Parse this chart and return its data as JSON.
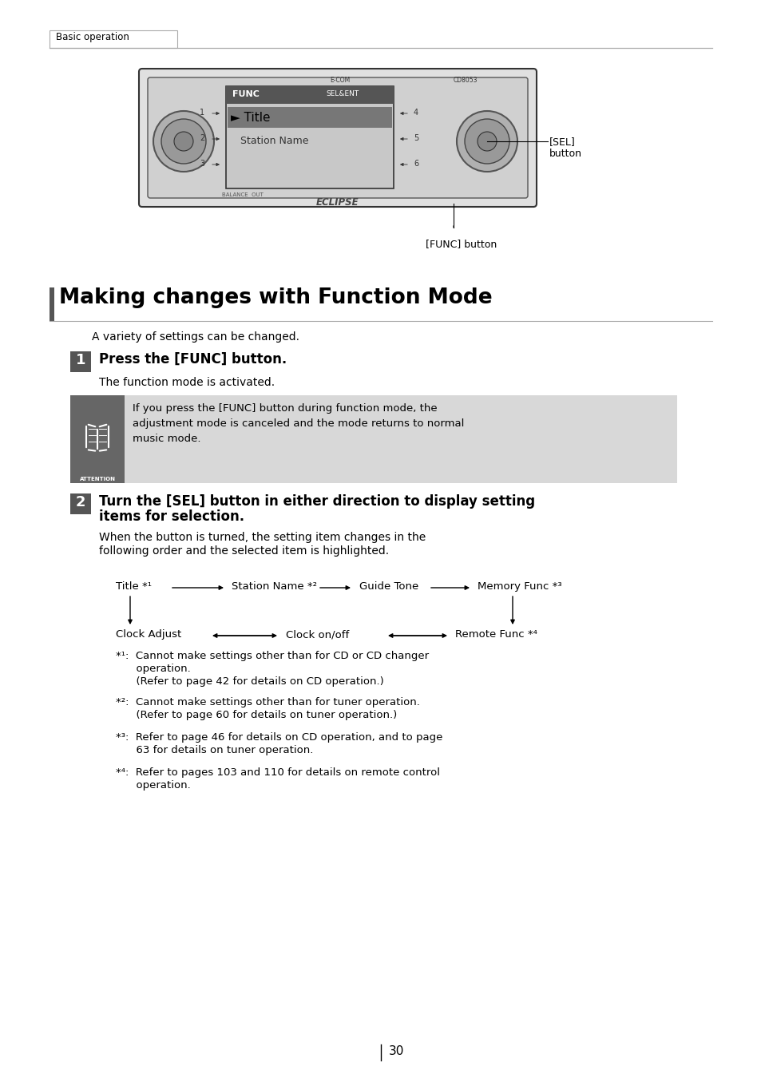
{
  "page_bg": "#ffffff",
  "tab_text": "Basic operation",
  "section_title": "Making changes with Function Mode",
  "section_title_bar_color": "#555555",
  "intro_text": "A variety of settings can be changed.",
  "step1_heading": "Press the [FUNC] button.",
  "step1_body": "The function mode is activated.",
  "attention_bg": "#d8d8d8",
  "attention_icon_bg": "#666666",
  "attention_text": "If you press the [FUNC] button during function mode, the\nadjustment mode is canceled and the mode returns to normal\nmusic mode.",
  "step2_heading_line1": "Turn the [SEL] button in either direction to display setting",
  "step2_heading_line2": "items for selection.",
  "step2_body_line1": "When the button is turned, the setting item changes in the",
  "step2_body_line2": "following order and the selected item is highlighted.",
  "note1_line1": "*¹:  Cannot make settings other than for CD or CD changer",
  "note1_line2": "      operation.",
  "note1_line3": "      (Refer to page 42 for details on CD operation.)",
  "note2_line1": "*²:  Cannot make settings other than for tuner operation.",
  "note2_line2": "      (Refer to page 60 for details on tuner operation.)",
  "note3_line1": "*³:  Refer to page 46 for details on CD operation, and to page",
  "note3_line2": "      63 for details on tuner operation.",
  "note4_line1": "*⁴:  Refer to pages 103 and 110 for details on remote control",
  "note4_line2": "      operation.",
  "page_number": "30",
  "sel_label1": "[SEL]",
  "sel_label2": "button",
  "func_label": "[FUNC] button"
}
